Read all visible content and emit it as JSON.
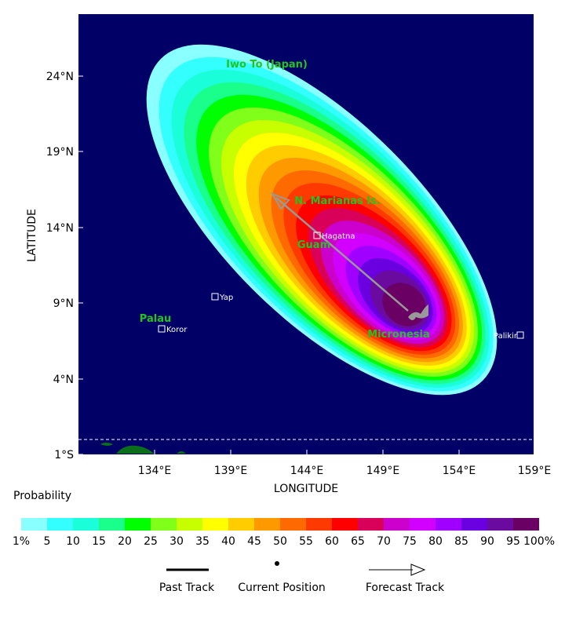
{
  "axes": {
    "y_label": "LATITUDE",
    "x_label": "LONGITUDE",
    "y_ticks": [
      "24°N",
      "19°N",
      "14°N",
      "9°N",
      "4°N",
      "1°S"
    ],
    "x_ticks": [
      "134°E",
      "139°E",
      "144°E",
      "149°E",
      "154°E",
      "159°E"
    ]
  },
  "regions": [
    "Iwo To (Japan)",
    "N. Marianas Is.",
    "Guam",
    "Palau",
    "Micronesia"
  ],
  "cities": [
    "Hagatna",
    "Yap",
    "Koror",
    "Palikir"
  ],
  "legend": {
    "title": "Probability",
    "colors": [
      "#8affff",
      "#33ffff",
      "#1affd9",
      "#1aff8c",
      "#00ff00",
      "#80ff1a",
      "#c8ff00",
      "#ffff00",
      "#ffcc00",
      "#ff9900",
      "#ff6a00",
      "#ff3a00",
      "#ff0000",
      "#d90059",
      "#cc00cc",
      "#d200ff",
      "#a000ff",
      "#6a00e0",
      "#6a0a9e",
      "#6a0064"
    ],
    "labels": [
      "1%",
      "5",
      "10",
      "15",
      "20",
      "25",
      "30",
      "35",
      "40",
      "45",
      "50",
      "55",
      "60",
      "65",
      "70",
      "75",
      "80",
      "85",
      "90",
      "95",
      "100%"
    ],
    "track_items": [
      "Past Track",
      "Current Position",
      "Forecast Track"
    ]
  }
}
